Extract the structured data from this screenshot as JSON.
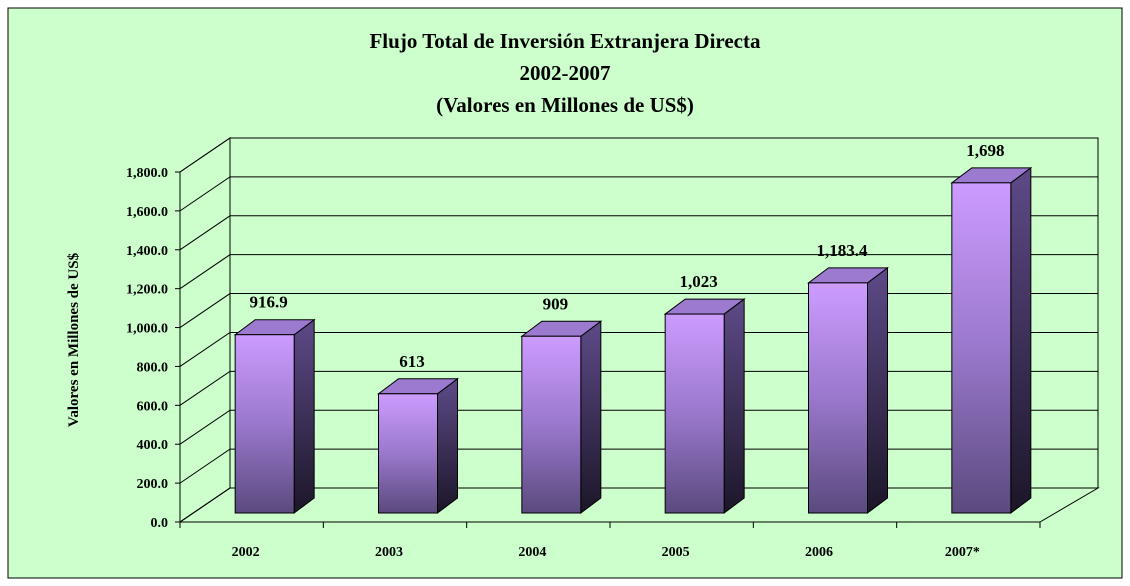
{
  "chart_data": {
    "type": "bar",
    "title": "Flujo Total de Inversión Extranjera Directa",
    "subtitle": "2002-2007",
    "subtitle2": "(Valores en Millones de US$)",
    "y_label": "Valores en Millones de US$",
    "categories": [
      "2002",
      "2003",
      "2004",
      "2005",
      "2006",
      "2007*"
    ],
    "values": [
      916.9,
      613,
      909,
      1023,
      1183.4,
      1698
    ],
    "value_labels": [
      "916.9",
      "613",
      "909",
      "1,023",
      "1,183.4",
      "1,698"
    ],
    "color": "#b58ef0",
    "ylim": [
      0,
      1800
    ],
    "yticks": [
      {
        "value": 0,
        "label": "0.0"
      },
      {
        "value": 200,
        "label": "200.0"
      },
      {
        "value": 400,
        "label": "400.0"
      },
      {
        "value": 600,
        "label": "600.0"
      },
      {
        "value": 800,
        "label": "800.0"
      },
      {
        "value": 1000,
        "label": "1,000.0"
      },
      {
        "value": 1200,
        "label": "1,200.0"
      },
      {
        "value": 1400,
        "label": "1,400.0"
      },
      {
        "value": 1600,
        "label": "1,600.0"
      },
      {
        "value": 1800,
        "label": "1,800.0"
      }
    ],
    "grid": true
  }
}
